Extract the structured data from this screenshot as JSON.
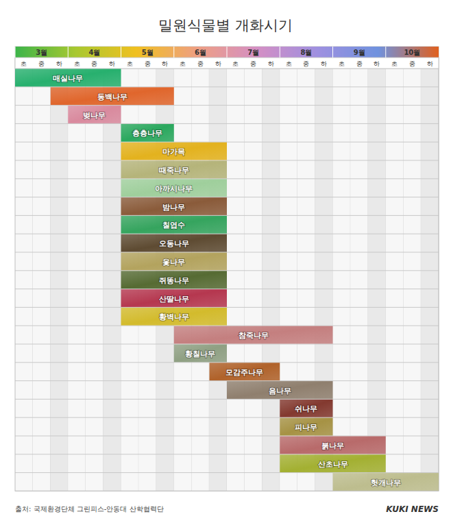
{
  "chart_data": {
    "type": "gantt",
    "orientation": "horizontal",
    "title": "밀원식물별 개화시기",
    "source": "출처: 국제환경단체 그린피스-안동대 산학협력단",
    "brand": "KUKI NEWS",
    "xlim": [
      3,
      11
    ],
    "xticks": [
      {
        "value": 3,
        "label": "3월"
      },
      {
        "value": 4,
        "label": "4월"
      },
      {
        "value": 5,
        "label": "5월"
      },
      {
        "value": 6,
        "label": "6월"
      },
      {
        "value": 7,
        "label": "7월"
      },
      {
        "value": 8,
        "label": "8월"
      },
      {
        "value": 9,
        "label": "9월"
      },
      {
        "value": 10,
        "label": "10월"
      }
    ],
    "period_labels": [
      "초",
      "중",
      "하"
    ],
    "grid": true,
    "data_labels": true,
    "categories": [
      "매실나무",
      "동백나무",
      "벚나무",
      "층층나무",
      "마가목",
      "때죽나무",
      "아까시나무",
      "밤나무",
      "칠엽수",
      "오동나무",
      "옻나무",
      "쥐똥나무",
      "산딸나무",
      "황벽나무",
      "참죽나무",
      "황칠나무",
      "모감주나무",
      "음나무",
      "쉬나무",
      "피나무",
      "붉나무",
      "산초나무",
      "헛개나무"
    ],
    "start": [
      3,
      3.67,
      4,
      5,
      5,
      5,
      5,
      5,
      5,
      5,
      5,
      5,
      5,
      5,
      6,
      6,
      6.67,
      7,
      8,
      8,
      8,
      8,
      9
    ],
    "end": [
      5,
      6,
      5,
      6,
      7,
      7,
      7,
      7,
      7,
      7,
      7,
      7,
      7,
      7,
      9,
      7,
      8,
      9,
      9,
      9,
      10,
      10,
      11
    ],
    "colors": [
      "#27b06e",
      "#e0662c",
      "#d98a9e",
      "#2aa85e",
      "#e3b21e",
      "#b5b47a",
      "#9fcf9c",
      "#8a5b3a",
      "#35a45e",
      "#5e4b32",
      "#b3a35e",
      "#566b33",
      "#b5374f",
      "#d3bb2c",
      "#c47f7f",
      "#8fa083",
      "#b0622a",
      "#8f7f6e",
      "#83392f",
      "#a69244",
      "#b86a6a",
      "#a3b032",
      "#bdbd8e"
    ]
  }
}
